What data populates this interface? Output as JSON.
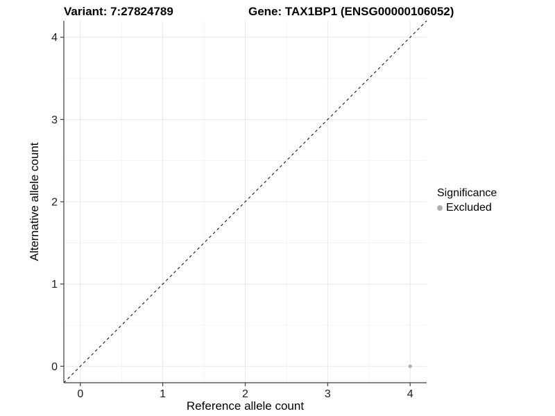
{
  "titles": {
    "variant": "Variant: 7:27824789",
    "gene": "Gene: TAX1BP1 (ENSG00000106052)"
  },
  "chart_data": {
    "type": "scatter",
    "xlabel": "Reference allele count",
    "ylabel": "Alternative allele count",
    "xlim": [
      -0.2,
      4.2
    ],
    "ylim": [
      -0.2,
      4.2
    ],
    "xticks": [
      0,
      1,
      2,
      3,
      4
    ],
    "yticks": [
      0,
      1,
      2,
      3,
      4
    ],
    "xticks_minor": [
      0.5,
      1.5,
      2.5,
      3.5
    ],
    "yticks_minor": [
      0.5,
      1.5,
      2.5,
      3.5
    ],
    "grid": "major+minor",
    "points": [
      {
        "x": 4,
        "y": 0,
        "series": "Excluded"
      }
    ],
    "reference_line": {
      "kind": "identity",
      "style": "dashed",
      "from": [
        -0.2,
        -0.2
      ],
      "to": [
        4.2,
        4.2
      ]
    },
    "legend": {
      "title": "Significance",
      "position": "right",
      "entries": [
        {
          "label": "Excluded",
          "color": "#b0b0b0"
        }
      ]
    }
  },
  "colors": {
    "background": "#ffffff",
    "point": "#b0b0b0",
    "grid_major": "#e8e8e8",
    "grid_minor": "#f3f3f3",
    "axis_line": "#3c3c3c",
    "tick_mark": "#3c3c3c",
    "dashed_line": "#000000",
    "text": "#000000"
  }
}
